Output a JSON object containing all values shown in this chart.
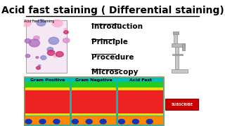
{
  "title": "Acid fast staining ( Differential staining)",
  "title_fontsize": 10,
  "bg_color": "#ffffff",
  "menu_items": [
    "Introduction",
    "Principle",
    "Procedure",
    "Microscopy"
  ],
  "menu_fontsize": 7.5,
  "micro_label": "Acid Fast Staining",
  "micro_label_fontsize": 3.5,
  "gram_labels": [
    "Gram Positive",
    "Gram Negative",
    "Acid Fast"
  ],
  "gram_label_fontsize": 4.5,
  "subscribe_text": "SUBSCRIBE",
  "subscribe_fontsize": 3.5
}
